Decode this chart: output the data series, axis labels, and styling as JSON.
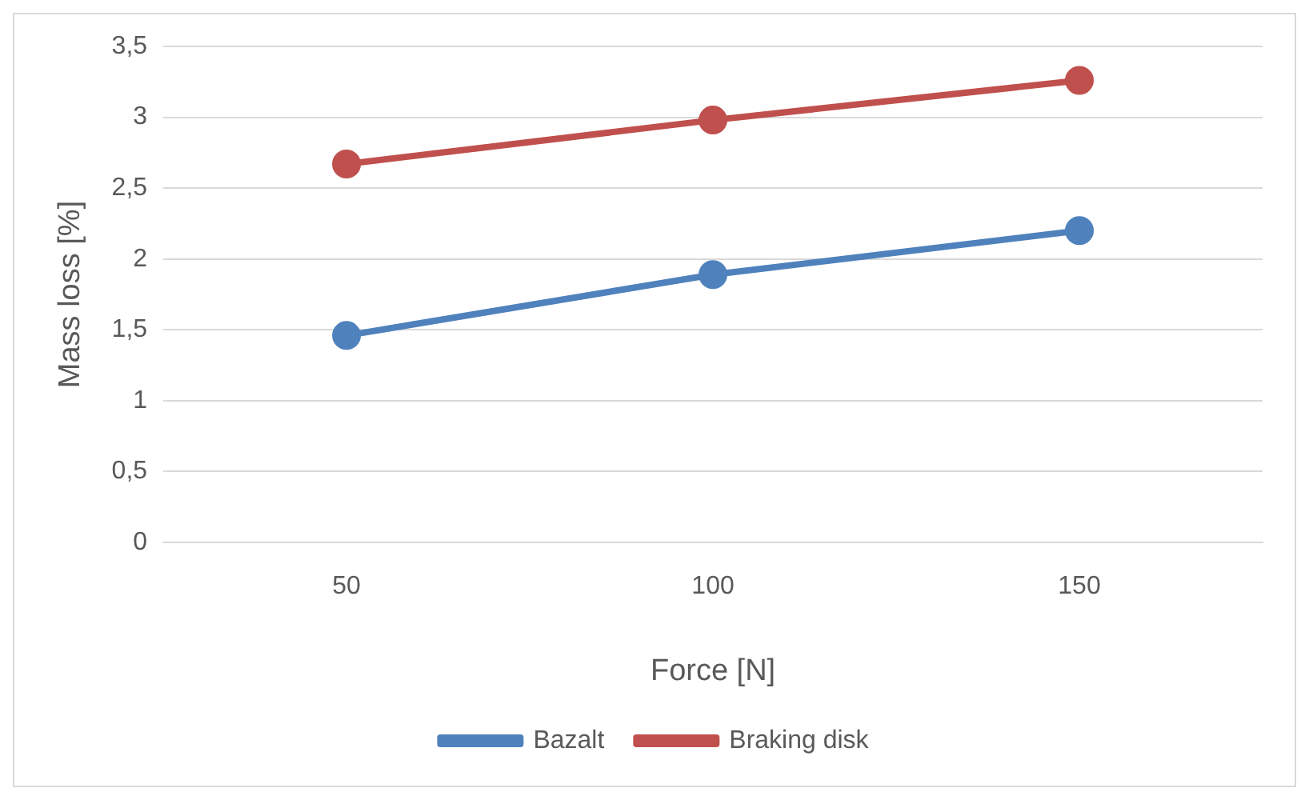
{
  "chart_data": {
    "type": "line",
    "xlabel": "Force [N]",
    "ylabel": "Mass loss [%]",
    "categories": [
      "50",
      "100",
      "150"
    ],
    "series": [
      {
        "name": "Bazalt",
        "color": "#4f81bd",
        "values": [
          1.46,
          1.89,
          2.2
        ]
      },
      {
        "name": "Braking disk",
        "color": "#c0504d",
        "values": [
          2.67,
          2.98,
          3.26
        ]
      }
    ],
    "ylim": [
      0,
      3.5
    ],
    "yticks": [
      0,
      {
        "value": 0.5,
        "label": "0,5"
      },
      1,
      {
        "value": 1.5,
        "label": "1,5"
      },
      2,
      {
        "value": 2.5,
        "label": "2,5"
      },
      3,
      {
        "value": 3.5,
        "label": "3,5"
      }
    ],
    "grid": "y",
    "legend": "bottom",
    "marker": "circle",
    "line_style": "solid"
  }
}
